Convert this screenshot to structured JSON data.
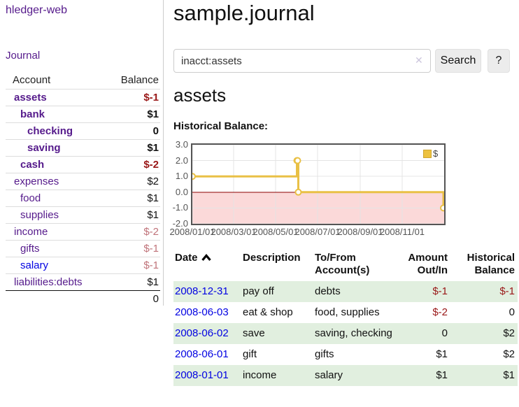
{
  "colors": {
    "link_purple": "#551a8b",
    "link_blue": "#0202e2",
    "negative_strong": "#991717",
    "negative_muted": "#c0737a",
    "row_stripe_green": "#e1efdf",
    "chart_line": "#e9c045",
    "chart_negative_fill": "#fbd9d9",
    "chart_zero_line": "#8b0000",
    "chart_border": "#555555",
    "chart_grid": "#e4e4e4",
    "chart_tick_text": "#545454",
    "legend_swatch_fill": "#edc240",
    "legend_swatch_border": "#cfa52e"
  },
  "sidebar": {
    "brand": "hledger-web",
    "journal_link": "Journal",
    "account_header": "Account",
    "balance_header": "Balance",
    "rows": [
      {
        "account": "assets",
        "balance": "$-1",
        "acct_style": "lvl1 emph link-purple",
        "bal_style": "emph neg-strong"
      },
      {
        "account": "bank",
        "balance": "$1",
        "acct_style": "lvl2 emph link-purple",
        "bal_style": "emph"
      },
      {
        "account": "checking",
        "balance": "0",
        "acct_style": "lvl3 emph link-purple",
        "bal_style": "emph"
      },
      {
        "account": "saving",
        "balance": "$1",
        "acct_style": "lvl3 emph link-purple",
        "bal_style": "emph"
      },
      {
        "account": "cash",
        "balance": "$-2",
        "acct_style": "lvl2 emph link-purple",
        "bal_style": "emph neg-strong"
      },
      {
        "account": "expenses",
        "balance": "$2",
        "acct_style": "lvl1 link-purple",
        "bal_style": ""
      },
      {
        "account": "food",
        "balance": "$1",
        "acct_style": "lvl2 link-purple",
        "bal_style": ""
      },
      {
        "account": "supplies",
        "balance": "$1",
        "acct_style": "lvl2 link-purple",
        "bal_style": ""
      },
      {
        "account": "income",
        "balance": "$-2",
        "acct_style": "lvl1 link-purple",
        "bal_style": "neg-muted"
      },
      {
        "account": "gifts",
        "balance": "$-1",
        "acct_style": "lvl2 link-purple",
        "bal_style": "neg-muted"
      },
      {
        "account": "salary",
        "balance": "$-1",
        "acct_style": "lvl2 link-blue",
        "bal_style": "neg-muted"
      },
      {
        "account": "liabilities:debts",
        "balance": "$1",
        "acct_style": "lvl1 link-purple",
        "bal_style": ""
      }
    ],
    "total": "0"
  },
  "header": {
    "title": "sample.journal"
  },
  "search": {
    "value": "inacct:assets",
    "clear_icon": "✕",
    "button_label": "Search",
    "help_label": "?"
  },
  "register": {
    "heading": "assets",
    "chart_title": "Historical Balance:",
    "table": {
      "col_date": "Date",
      "sort_icon": "chevron-up",
      "col_description": "Description",
      "col_accounts": "To/From Account(s)",
      "col_amount": "Amount Out/In",
      "col_balance": "Historical Balance",
      "rows": [
        {
          "date": "2008-12-31",
          "description": "pay off",
          "accounts": "debts",
          "amount": "$-1",
          "balance": "$-1",
          "row_style": "stripe",
          "amount_style": "neg-strong",
          "balance_style": "neg-strong"
        },
        {
          "date": "2008-06-03",
          "description": "eat & shop",
          "accounts": "food, supplies",
          "amount": "$-2",
          "balance": "0",
          "row_style": "",
          "amount_style": "neg-strong",
          "balance_style": ""
        },
        {
          "date": "2008-06-02",
          "description": "save",
          "accounts": "saving, checking",
          "amount": "0",
          "balance": "$2",
          "row_style": "stripe",
          "amount_style": "",
          "balance_style": ""
        },
        {
          "date": "2008-06-01",
          "description": "gift",
          "accounts": "gifts",
          "amount": "$1",
          "balance": "$2",
          "row_style": "",
          "amount_style": "",
          "balance_style": ""
        },
        {
          "date": "2008-01-01",
          "description": "income",
          "accounts": "salary",
          "amount": "$1",
          "balance": "$1",
          "row_style": "stripe",
          "amount_style": "",
          "balance_style": ""
        }
      ]
    }
  },
  "chart_data": {
    "type": "line",
    "title": "Historical Balance",
    "step": true,
    "series": [
      {
        "name": "$",
        "points": [
          [
            "2008-01-01",
            1
          ],
          [
            "2008-06-01",
            2
          ],
          [
            "2008-06-02",
            2
          ],
          [
            "2008-06-03",
            0
          ],
          [
            "2008-12-31",
            -1
          ]
        ]
      }
    ],
    "xrange": [
      "2008-01-01",
      "2009-01-01"
    ],
    "ylim": [
      -2,
      3
    ],
    "yticks": [
      "3.0",
      "2.0",
      "1.0",
      "0.0",
      "-1.0",
      "-2.0"
    ],
    "xticks": [
      "2008/01/01",
      "2008/03/01",
      "2008/05/01",
      "2008/07/01",
      "2008/09/01",
      "2008/11/01"
    ],
    "legend": {
      "label": "$",
      "position": "top-right"
    },
    "grid": true,
    "negative_region_shaded": true
  }
}
